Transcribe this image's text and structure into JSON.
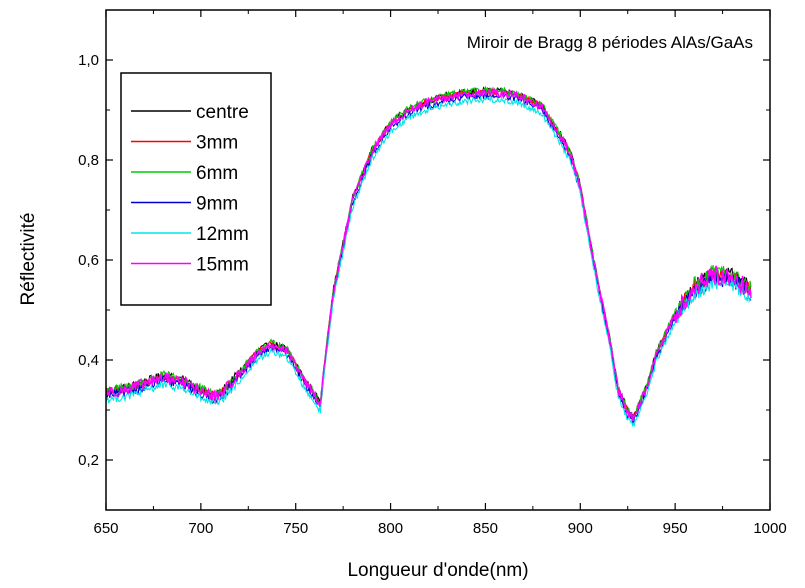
{
  "chart_data": {
    "type": "line",
    "title": "",
    "annotation": "Miroir de Bragg 8 périodes AlAs/GaAs",
    "xlabel": "Longueur d'onde(nm)",
    "ylabel": "Réflectivité",
    "xlim": [
      650,
      1000
    ],
    "ylim": [
      0.1,
      1.1
    ],
    "xticks": [
      650,
      700,
      750,
      800,
      850,
      900,
      950,
      1000
    ],
    "xtick_labels": [
      "650",
      "700",
      "750",
      "800",
      "850",
      "900",
      "950",
      "1000"
    ],
    "yticks": [
      0.2,
      0.4,
      0.6,
      0.8,
      1.0
    ],
    "ytick_labels": [
      "0,2",
      "0,4",
      "0,6",
      "0,8",
      "1,0"
    ],
    "grid": false,
    "legend_position": "top-left",
    "x_range_of_data": [
      650,
      990
    ],
    "base_curve": {
      "x": [
        650,
        660,
        670,
        680,
        690,
        700,
        705,
        710,
        720,
        730,
        737,
        745,
        750,
        755,
        760,
        763,
        766,
        770,
        775,
        780,
        790,
        800,
        810,
        820,
        830,
        840,
        850,
        860,
        870,
        880,
        885,
        890,
        895,
        900,
        905,
        910,
        915,
        920,
        925,
        928,
        930,
        935,
        940,
        950,
        960,
        970,
        980,
        990
      ],
      "y": [
        0.335,
        0.34,
        0.352,
        0.365,
        0.358,
        0.338,
        0.328,
        0.33,
        0.37,
        0.415,
        0.43,
        0.42,
        0.39,
        0.355,
        0.33,
        0.31,
        0.42,
        0.54,
        0.63,
        0.72,
        0.815,
        0.87,
        0.9,
        0.915,
        0.925,
        0.932,
        0.935,
        0.933,
        0.925,
        0.905,
        0.875,
        0.845,
        0.81,
        0.745,
        0.64,
        0.54,
        0.45,
        0.34,
        0.295,
        0.285,
        0.3,
        0.345,
        0.41,
        0.49,
        0.545,
        0.57,
        0.565,
        0.54
      ]
    },
    "series": [
      {
        "name": "centre",
        "color": "#000000",
        "offset": 0.004,
        "noise": 0.006
      },
      {
        "name": "3mm",
        "color": "#ff0000",
        "offset": 0.002,
        "noise": 0.006
      },
      {
        "name": "6mm",
        "color": "#00cc00",
        "offset": 0.004,
        "noise": 0.007
      },
      {
        "name": "9mm",
        "color": "#0000cc",
        "offset": -0.006,
        "noise": 0.007
      },
      {
        "name": "12mm",
        "color": "#00e5e5",
        "offset": -0.014,
        "noise": 0.006
      },
      {
        "name": "15mm",
        "color": "#ff00ff",
        "offset": 0.0,
        "noise": 0.008
      }
    ]
  }
}
